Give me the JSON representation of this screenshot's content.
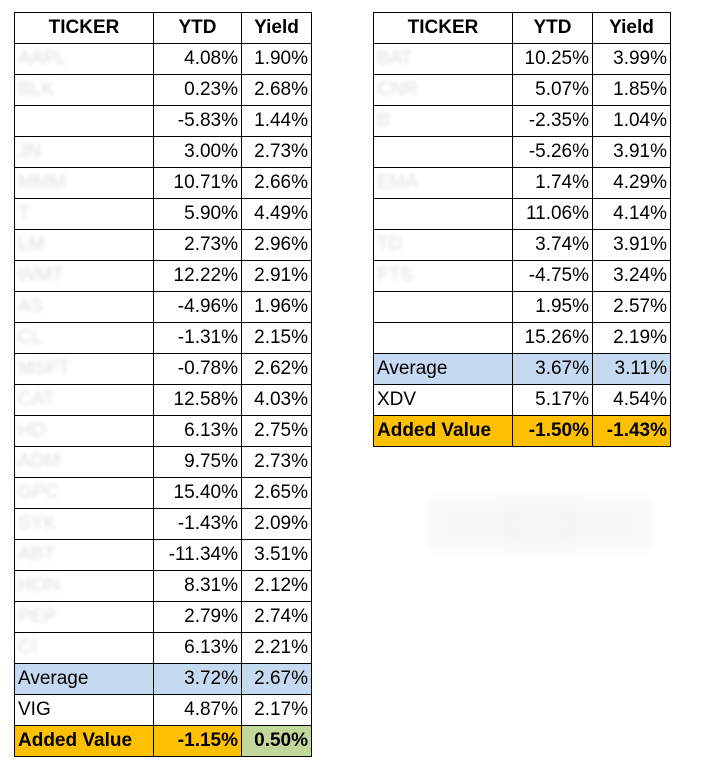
{
  "left_table": {
    "headers": [
      "TICKER",
      "YTD",
      "Yield"
    ],
    "rows": [
      {
        "ticker": "AAPL",
        "ytd": "4.08%",
        "yield": "1.90%"
      },
      {
        "ticker": "BLK",
        "ytd": "0.23%",
        "yield": "2.68%"
      },
      {
        "ticker": "",
        "ytd": "-5.83%",
        "yield": "1.44%"
      },
      {
        "ticker": "JN",
        "ytd": "3.00%",
        "yield": "2.73%"
      },
      {
        "ticker": "MMM",
        "ytd": "10.71%",
        "yield": "2.66%"
      },
      {
        "ticker": "T",
        "ytd": "5.90%",
        "yield": "4.49%"
      },
      {
        "ticker": "LM",
        "ytd": "2.73%",
        "yield": "2.96%"
      },
      {
        "ticker": "WMT",
        "ytd": "12.22%",
        "yield": "2.91%"
      },
      {
        "ticker": "AS",
        "ytd": "-4.96%",
        "yield": "1.96%"
      },
      {
        "ticker": "CL",
        "ytd": "-1.31%",
        "yield": "2.15%"
      },
      {
        "ticker": "MSFT",
        "ytd": "-0.78%",
        "yield": "2.62%"
      },
      {
        "ticker": "CAT",
        "ytd": "12.58%",
        "yield": "4.03%"
      },
      {
        "ticker": "HD",
        "ytd": "6.13%",
        "yield": "2.75%"
      },
      {
        "ticker": "ADM",
        "ytd": "9.75%",
        "yield": "2.73%"
      },
      {
        "ticker": "GPC",
        "ytd": "15.40%",
        "yield": "2.65%"
      },
      {
        "ticker": "SYK",
        "ytd": "-1.43%",
        "yield": "2.09%"
      },
      {
        "ticker": "ABT",
        "ytd": "-11.34%",
        "yield": "3.51%"
      },
      {
        "ticker": "HON",
        "ytd": "8.31%",
        "yield": "2.12%"
      },
      {
        "ticker": "PEP",
        "ytd": "2.79%",
        "yield": "2.74%"
      },
      {
        "ticker": "CI",
        "ytd": "6.13%",
        "yield": "2.21%"
      }
    ],
    "average": {
      "label": "Average",
      "ytd": "3.72%",
      "yield": "2.67%"
    },
    "benchmark": {
      "label": "VIG",
      "ytd": "4.87%",
      "yield": "2.17%"
    },
    "added_value": {
      "label": "Added Value",
      "ytd": "-1.15%",
      "yield": "0.50%"
    }
  },
  "right_table": {
    "headers": [
      "TICKER",
      "YTD",
      "Yield"
    ],
    "rows": [
      {
        "ticker": "BAT",
        "ytd": "10.25%",
        "yield": "3.99%"
      },
      {
        "ticker": "CNR",
        "ytd": "5.07%",
        "yield": "1.85%"
      },
      {
        "ticker": "B",
        "ytd": "-2.35%",
        "yield": "1.04%"
      },
      {
        "ticker": "",
        "ytd": "-5.26%",
        "yield": "3.91%"
      },
      {
        "ticker": "EMA",
        "ytd": "1.74%",
        "yield": "4.29%"
      },
      {
        "ticker": "",
        "ytd": "11.06%",
        "yield": "4.14%"
      },
      {
        "ticker": "TD",
        "ytd": "3.74%",
        "yield": "3.91%"
      },
      {
        "ticker": "FTS",
        "ytd": "-4.75%",
        "yield": "3.24%"
      },
      {
        "ticker": "",
        "ytd": "1.95%",
        "yield": "2.57%"
      },
      {
        "ticker": "",
        "ytd": "15.26%",
        "yield": "2.19%"
      }
    ],
    "average": {
      "label": "Average",
      "ytd": "3.67%",
      "yield": "3.11%"
    },
    "benchmark": {
      "label": "XDV",
      "ytd": "5.17%",
      "yield": "4.54%"
    },
    "added_value": {
      "label": "Added Value",
      "ytd": "-1.50%",
      "yield": "-1.43%"
    }
  },
  "colors": {
    "average_fill": "#c5d9f1",
    "added_value_fill": "#ffc000",
    "positive_fill": "#c4d79b"
  }
}
